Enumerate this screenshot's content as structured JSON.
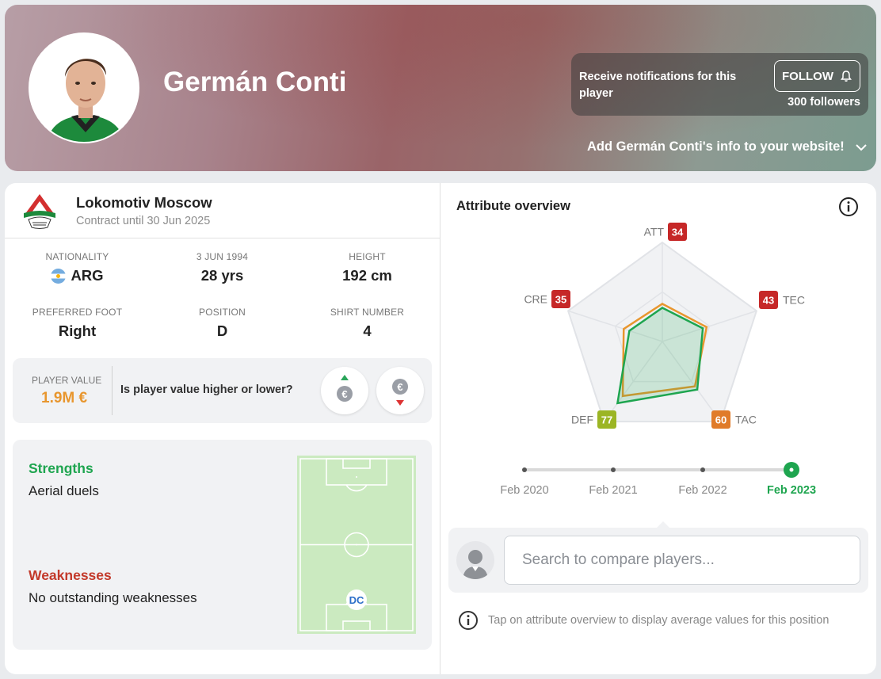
{
  "header": {
    "player_name": "Germán Conti",
    "notification_text": "Receive notifications for this player",
    "follow_label": "FOLLOW",
    "followers": "300 followers",
    "embed_link": "Add Germán Conti's info to your website!"
  },
  "club": {
    "name": "Lokomotiv Moscow",
    "contract": "Contract until 30 Jun 2025"
  },
  "info": [
    {
      "label": "NATIONALITY",
      "value": "ARG"
    },
    {
      "label": "3 JUN 1994",
      "value": "28 yrs"
    },
    {
      "label": "HEIGHT",
      "value": "192 cm"
    },
    {
      "label": "PREFERRED FOOT",
      "value": "Right"
    },
    {
      "label": "POSITION",
      "value": "D"
    },
    {
      "label": "SHIRT NUMBER",
      "value": "4"
    }
  ],
  "player_value": {
    "label": "PLAYER VALUE",
    "value": "1.9M €",
    "question": "Is player value higher or lower?",
    "higher_icon": "euro-up-icon",
    "lower_icon": "euro-down-icon"
  },
  "strengths": {
    "title": "Strengths",
    "items": "Aerial duels"
  },
  "weaknesses": {
    "title": "Weaknesses",
    "items": "No outstanding weaknesses"
  },
  "pitch": {
    "position_marker": "DC"
  },
  "attributes": {
    "title": "Attribute overview",
    "items": [
      {
        "code": "ATT",
        "value": "34",
        "color": "#c62828"
      },
      {
        "code": "TEC",
        "value": "43",
        "color": "#c62828"
      },
      {
        "code": "TAC",
        "value": "60",
        "color": "#e07b29"
      },
      {
        "code": "DEF",
        "value": "77",
        "color": "#9bb524"
      },
      {
        "code": "CRE",
        "value": "35",
        "color": "#c62828"
      }
    ],
    "current_series": [
      34,
      43,
      60,
      77,
      35
    ],
    "average_series": [
      38,
      47,
      56,
      68,
      41
    ]
  },
  "timeline": {
    "items": [
      {
        "label": "Feb 2020",
        "active": false
      },
      {
        "label": "Feb 2021",
        "active": false
      },
      {
        "label": "Feb 2022",
        "active": false
      },
      {
        "label": "Feb 2023",
        "active": true
      }
    ]
  },
  "compare": {
    "placeholder": "Search to compare players..."
  },
  "hint": "Tap on attribute overview to display average values for this position",
  "colors": {
    "strength": "#1ea54f",
    "weakness": "#c33a2b",
    "value": "#e8962e",
    "current_series": "#1ea54f",
    "average_series": "#e8962e"
  }
}
